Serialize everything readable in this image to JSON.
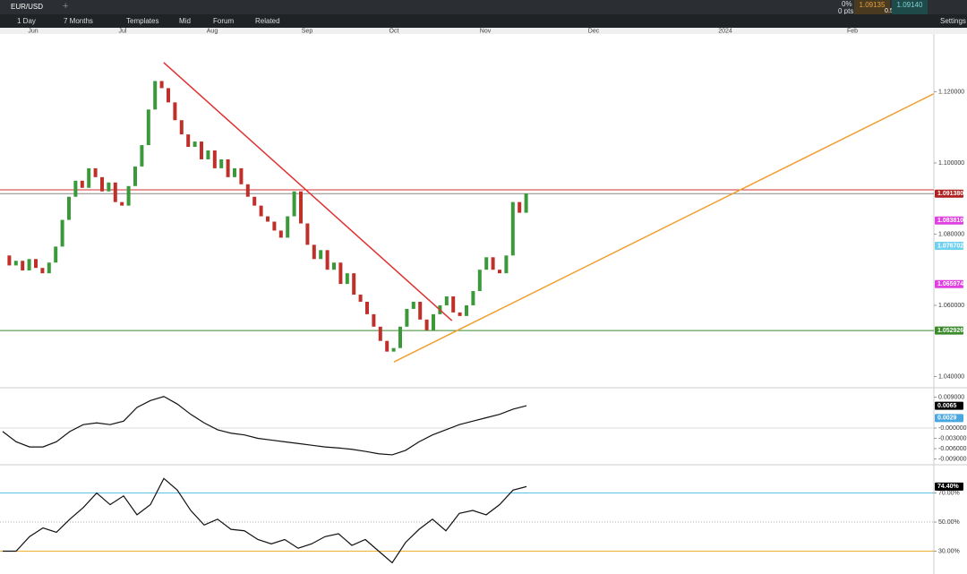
{
  "toolbar": {
    "symbol": "EUR/USD",
    "change_pct": "0%",
    "change_pts": "0 pts",
    "bid": "1.09135",
    "spread": "0.5",
    "ask": "1.09140"
  },
  "menu": {
    "interval": "1 Day",
    "range": "7 Months",
    "items": [
      "Templates",
      "Mid",
      "Forum",
      "Related"
    ],
    "settings": "Settings"
  },
  "time_axis": [
    "Jun",
    "Jul",
    "Aug",
    "Sep",
    "Oct",
    "Nov",
    "Dec",
    "2024",
    "Feb"
  ],
  "chart": {
    "type": "candlestick",
    "closes": [
      1.074,
      1.0712,
      1.0725,
      1.0698,
      1.073,
      1.0705,
      1.069,
      1.072,
      1.0765,
      1.084,
      1.0905,
      1.095,
      1.093,
      1.0985,
      1.096,
      1.092,
      1.0945,
      1.089,
      1.088,
      1.0935,
      1.099,
      1.105,
      1.115,
      1.123,
      1.121,
      1.117,
      1.112,
      1.108,
      1.1045,
      1.106,
      1.101,
      1.1035,
      1.0985,
      1.101,
      1.096,
      1.0985,
      1.094,
      1.0905,
      1.088,
      1.085,
      1.0835,
      1.081,
      1.079,
      1.085,
      1.092,
      1.083,
      1.077,
      1.073,
      1.0755,
      1.07,
      1.072,
      1.066,
      1.069,
      1.063,
      1.061,
      1.0575,
      1.054,
      1.05,
      1.047,
      1.048,
      1.054,
      1.059,
      1.061,
      1.056,
      1.053,
      1.0575,
      1.06,
      1.0625,
      1.058,
      1.057,
      1.06,
      1.064,
      1.07,
      1.0735,
      1.07,
      1.069,
      1.074,
      1.089,
      1.086,
      1.0914
    ],
    "up_color": "#3a9a3a",
    "down_color": "#c0302a",
    "ylim": [
      1.0371,
      1.1362
    ],
    "yticks": [
      {
        "value": 1.12,
        "label": "1.120000"
      },
      {
        "value": 1.1,
        "label": "1.100000"
      },
      {
        "value": 1.08,
        "label": "1.080000"
      },
      {
        "value": 1.06,
        "label": "1.060000"
      },
      {
        "value": 1.04,
        "label": "1.040000"
      }
    ],
    "levels": [
      {
        "value": 1.09245,
        "color": "#d03030"
      },
      {
        "value": 1.09138,
        "color": "#888888"
      },
      {
        "value": 1.052926,
        "color": "#3a8a2a"
      }
    ],
    "price_tags": [
      {
        "value": 1.09138,
        "label": "1.091380",
        "color": "#b02020"
      },
      {
        "value": 1.08381,
        "label": "1.083810",
        "color": "#e040e0"
      },
      {
        "value": 1.076702,
        "label": "1.076702",
        "color": "#70d0f0"
      },
      {
        "value": 1.065974,
        "label": "1.065974",
        "color": "#e040e0"
      },
      {
        "value": 1.052926,
        "label": "1.052926",
        "color": "#3a8a2a"
      }
    ],
    "trendlines": [
      {
        "color": "#e03030",
        "points": [
          [
            24.3,
            1.1282
          ],
          [
            67.8,
            1.0557
          ]
        ]
      },
      {
        "color": "#f0a030",
        "points": [
          [
            59.05,
            1.0441
          ],
          [
            140.5,
            1.1194
          ]
        ]
      }
    ]
  },
  "macd": {
    "type": "line",
    "values": [
      -0.001,
      -0.004,
      -0.0055,
      -0.0055,
      -0.004,
      -0.001,
      0.001,
      0.0015,
      0.001,
      0.002,
      0.006,
      0.008,
      0.0092,
      0.007,
      0.004,
      0.0015,
      -0.0005,
      -0.0015,
      -0.002,
      -0.003,
      -0.0035,
      -0.004,
      -0.0045,
      -0.005,
      -0.0055,
      -0.0058,
      -0.0062,
      -0.0068,
      -0.0075,
      -0.0078,
      -0.0065,
      -0.004,
      -0.002,
      -0.0005,
      0.001,
      0.002,
      0.003,
      0.004,
      0.0055,
      0.0065
    ],
    "ylim": [
      -0.01043,
      0.01148
    ],
    "yticks": [
      {
        "value": 0.009,
        "label": "0.009000"
      },
      {
        "value": 0,
        "label": "-0.000000"
      },
      {
        "value": -0.003,
        "label": "-0.003000"
      },
      {
        "value": -0.006,
        "label": "-0.006000"
      },
      {
        "value": -0.009,
        "label": "-0.009000"
      }
    ],
    "price_tags": [
      {
        "value": 0.0065,
        "label": "0.0065",
        "color": "#000000"
      },
      {
        "value": 0.0029,
        "label": "0.0029",
        "color": "#4aa8e0"
      }
    ]
  },
  "rsi": {
    "type": "line",
    "values": [
      30,
      30,
      40,
      46,
      43,
      52,
      60,
      70,
      62,
      68,
      55,
      62,
      80,
      72,
      58,
      48,
      52,
      45,
      44,
      38,
      35,
      38,
      32,
      35,
      40,
      42,
      34,
      38,
      30,
      22,
      36,
      45,
      52,
      44,
      56,
      58,
      55,
      62,
      72,
      74.4
    ],
    "ylim": [
      14.3,
      88.8
    ],
    "yticks": [
      {
        "value": 70,
        "label": "70.00%"
      },
      {
        "value": 50,
        "label": "50.00%"
      },
      {
        "value": 30,
        "label": "30.00%"
      }
    ],
    "price_tags": [
      {
        "value": 74.4,
        "label": "74.40%",
        "color": "#000000"
      }
    ]
  }
}
